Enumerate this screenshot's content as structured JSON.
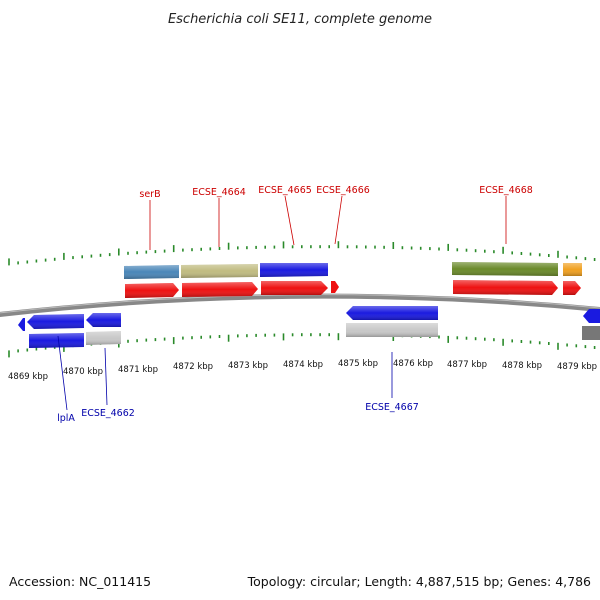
{
  "title": "Escherichia coli SE11, complete genome",
  "footer": {
    "accession": "Accession: NC_011415",
    "summary": "Topology: circular; Length: 4,887,515 bp; Genes: 4,786"
  },
  "axis": {
    "tick_labels": [
      "4869 kbp",
      "4870 kbp",
      "4871 kbp",
      "4872 kbp",
      "4873 kbp",
      "4874 kbp",
      "4875 kbp",
      "4876 kbp",
      "4877 kbp",
      "4878 kbp",
      "4879 kbp"
    ]
  },
  "gene_labels": {
    "forward": [
      "serB",
      "ECSE_4664",
      "ECSE_4665",
      "ECSE_4666",
      "ECSE_4668"
    ],
    "reverse": [
      "lplA",
      "ECSE_4662",
      "ECSE_4667"
    ]
  },
  "colors": {
    "cds_red": "#ee1111",
    "blue": "#1a1ae0",
    "steelblue": "#4a86b8",
    "khaki": "#c0bb80",
    "olive": "#6a8a2a",
    "orange": "#f0a020",
    "gray": "#c8c8c8",
    "darkgray": "#777777",
    "tick_green": "#2a8a2a",
    "backbone": "#888888"
  }
}
